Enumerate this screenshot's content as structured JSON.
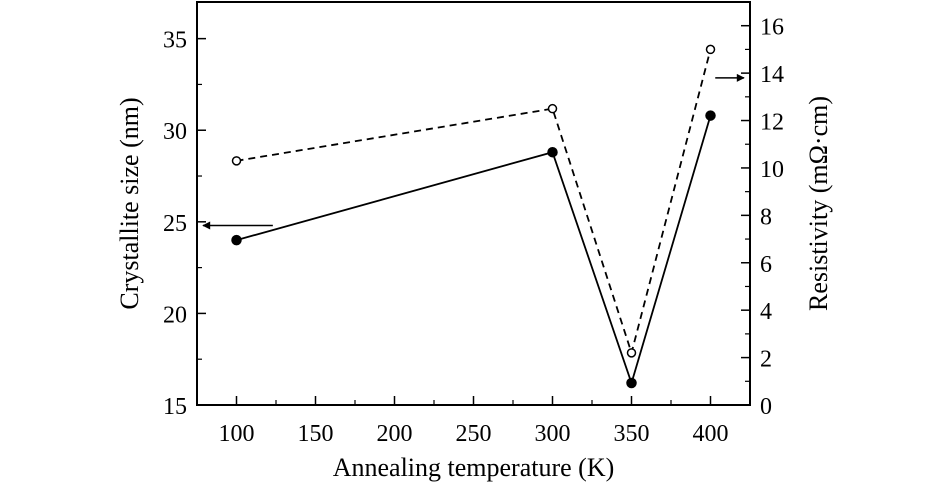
{
  "chart_data": {
    "type": "line",
    "title": "",
    "xlabel": "Annealing temperature (K)",
    "ylabel": "Crystallite size (nm)",
    "y2label": "Resistivity (mΩ·cm)",
    "xlim": [
      75,
      425
    ],
    "ylim": [
      15,
      37
    ],
    "y2lim": [
      0,
      17
    ],
    "x_ticks": [
      100,
      150,
      200,
      250,
      300,
      350,
      400
    ],
    "y_ticks": [
      15,
      20,
      25,
      30,
      35
    ],
    "y2_ticks": [
      0,
      2,
      4,
      6,
      8,
      10,
      12,
      14,
      16
    ],
    "x": [
      100,
      300,
      350,
      400
    ],
    "series": [
      {
        "axis": "left",
        "line_style": "solid",
        "marker": "filled-circle",
        "values": [
          24.0,
          28.8,
          16.2,
          30.8
        ]
      },
      {
        "axis": "right",
        "line_style": "dashed",
        "marker": "open-circle",
        "values": [
          10.3,
          12.5,
          2.2,
          15.0
        ]
      }
    ],
    "annotations": [
      {
        "type": "arrow",
        "direction": "left",
        "points_to_axis": "left",
        "near_series": 0
      },
      {
        "type": "arrow",
        "direction": "right",
        "points_to_axis": "right",
        "near_series": 1
      }
    ],
    "grid": false,
    "legend": "none"
  }
}
